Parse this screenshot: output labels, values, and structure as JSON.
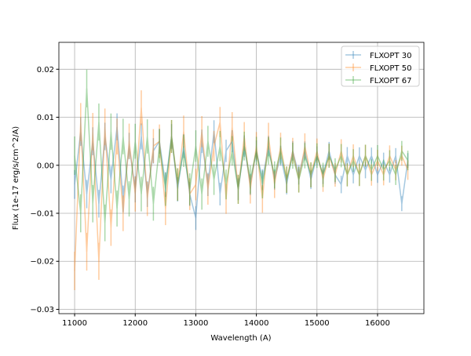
{
  "chart_data": {
    "type": "line",
    "title": "",
    "xlabel": "Wavelength (A)",
    "ylabel": "Flux (1e-17 erg/s/cm^2/A)",
    "xlim": [
      10740,
      16765
    ],
    "ylim": [
      -0.0309,
      0.0256
    ],
    "xticks": [
      11000,
      12000,
      13000,
      14000,
      15000,
      16000
    ],
    "xtick_labels": [
      "11000",
      "12000",
      "13000",
      "14000",
      "15000",
      "16000"
    ],
    "yticks": [
      -0.03,
      -0.02,
      -0.01,
      0.0,
      0.01,
      0.02
    ],
    "ytick_labels": [
      "−0.03",
      "−0.02",
      "−0.01",
      "0.00",
      "0.01",
      "0.02"
    ],
    "grid": true,
    "legend_position": "top-right",
    "x": [
      11000,
      11100,
      11200,
      11300,
      11400,
      11500,
      11600,
      11700,
      11800,
      11900,
      12000,
      12100,
      12200,
      12300,
      12400,
      12500,
      12600,
      12700,
      12800,
      12900,
      13000,
      13100,
      13200,
      13300,
      13400,
      13500,
      13600,
      13700,
      13800,
      13900,
      14000,
      14100,
      14200,
      14300,
      14400,
      14500,
      14600,
      14700,
      14800,
      14900,
      15000,
      15100,
      15200,
      15300,
      15400,
      15500,
      15600,
      15700,
      15800,
      15900,
      16000,
      16100,
      16200,
      16300,
      16400,
      16500
    ],
    "series": [
      {
        "name": "FLXOPT 30",
        "color": "#1f77b4",
        "error": 0.003,
        "values": [
          -0.004,
          0.007,
          -0.006,
          0.005,
          -0.008,
          0.006,
          -0.003,
          0.008,
          -0.007,
          0.004,
          -0.005,
          0.006,
          -0.006,
          0.003,
          0.005,
          -0.004,
          0.006,
          -0.005,
          0.004,
          -0.006,
          -0.011,
          0.005,
          -0.004,
          0.007,
          -0.006,
          0.003,
          0.005,
          -0.005,
          0.004,
          -0.004,
          0.003,
          -0.003,
          0.004,
          -0.003,
          0.002,
          -0.004,
          0.003,
          -0.002,
          0.003,
          -0.003,
          0.002,
          -0.002,
          0.003,
          -0.002,
          -0.004,
          0.002,
          -0.002,
          0.002,
          -0.001,
          0.002,
          -0.002,
          0.001,
          -0.002,
          0.002,
          -0.008,
          0.001
        ]
      },
      {
        "name": "FLXOPT 50",
        "color": "#ff7f0e",
        "error": 0.004,
        "values": [
          -0.022,
          0.009,
          -0.018,
          0.007,
          -0.02,
          0.008,
          -0.013,
          0.006,
          -0.01,
          0.005,
          -0.006,
          0.012,
          -0.007,
          0.004,
          0.005,
          -0.009,
          0.006,
          -0.004,
          0.007,
          -0.006,
          -0.004,
          0.007,
          -0.005,
          0.004,
          0.009,
          -0.007,
          0.008,
          -0.005,
          0.006,
          -0.005,
          0.004,
          -0.007,
          0.006,
          -0.004,
          0.004,
          -0.003,
          0.003,
          -0.003,
          0.004,
          -0.002,
          0.003,
          -0.003,
          0.002,
          -0.002,
          0.003,
          -0.002,
          0.002,
          -0.002,
          0.002,
          -0.002,
          0.001,
          -0.002,
          0.002,
          -0.001,
          0.002,
          -0.001
        ]
      },
      {
        "name": "FLXOPT 67",
        "color": "#2ca02c",
        "error": 0.004,
        "values": [
          0.002,
          -0.01,
          0.016,
          -0.008,
          0.009,
          -0.012,
          0.007,
          -0.009,
          0.006,
          -0.007,
          0.005,
          -0.006,
          0.006,
          -0.008,
          0.004,
          -0.005,
          0.006,
          -0.004,
          0.003,
          -0.005,
          0.004,
          -0.006,
          0.005,
          -0.003,
          0.004,
          -0.004,
          0.003,
          -0.005,
          0.004,
          -0.003,
          0.003,
          -0.004,
          0.003,
          -0.002,
          0.003,
          -0.003,
          0.002,
          -0.003,
          0.002,
          -0.002,
          0.002,
          -0.002,
          0.002,
          -0.001,
          0.002,
          -0.002,
          0.001,
          -0.002,
          0.002,
          -0.001,
          0.002,
          -0.001,
          0.001,
          -0.002,
          0.003,
          0.001
        ]
      }
    ]
  }
}
